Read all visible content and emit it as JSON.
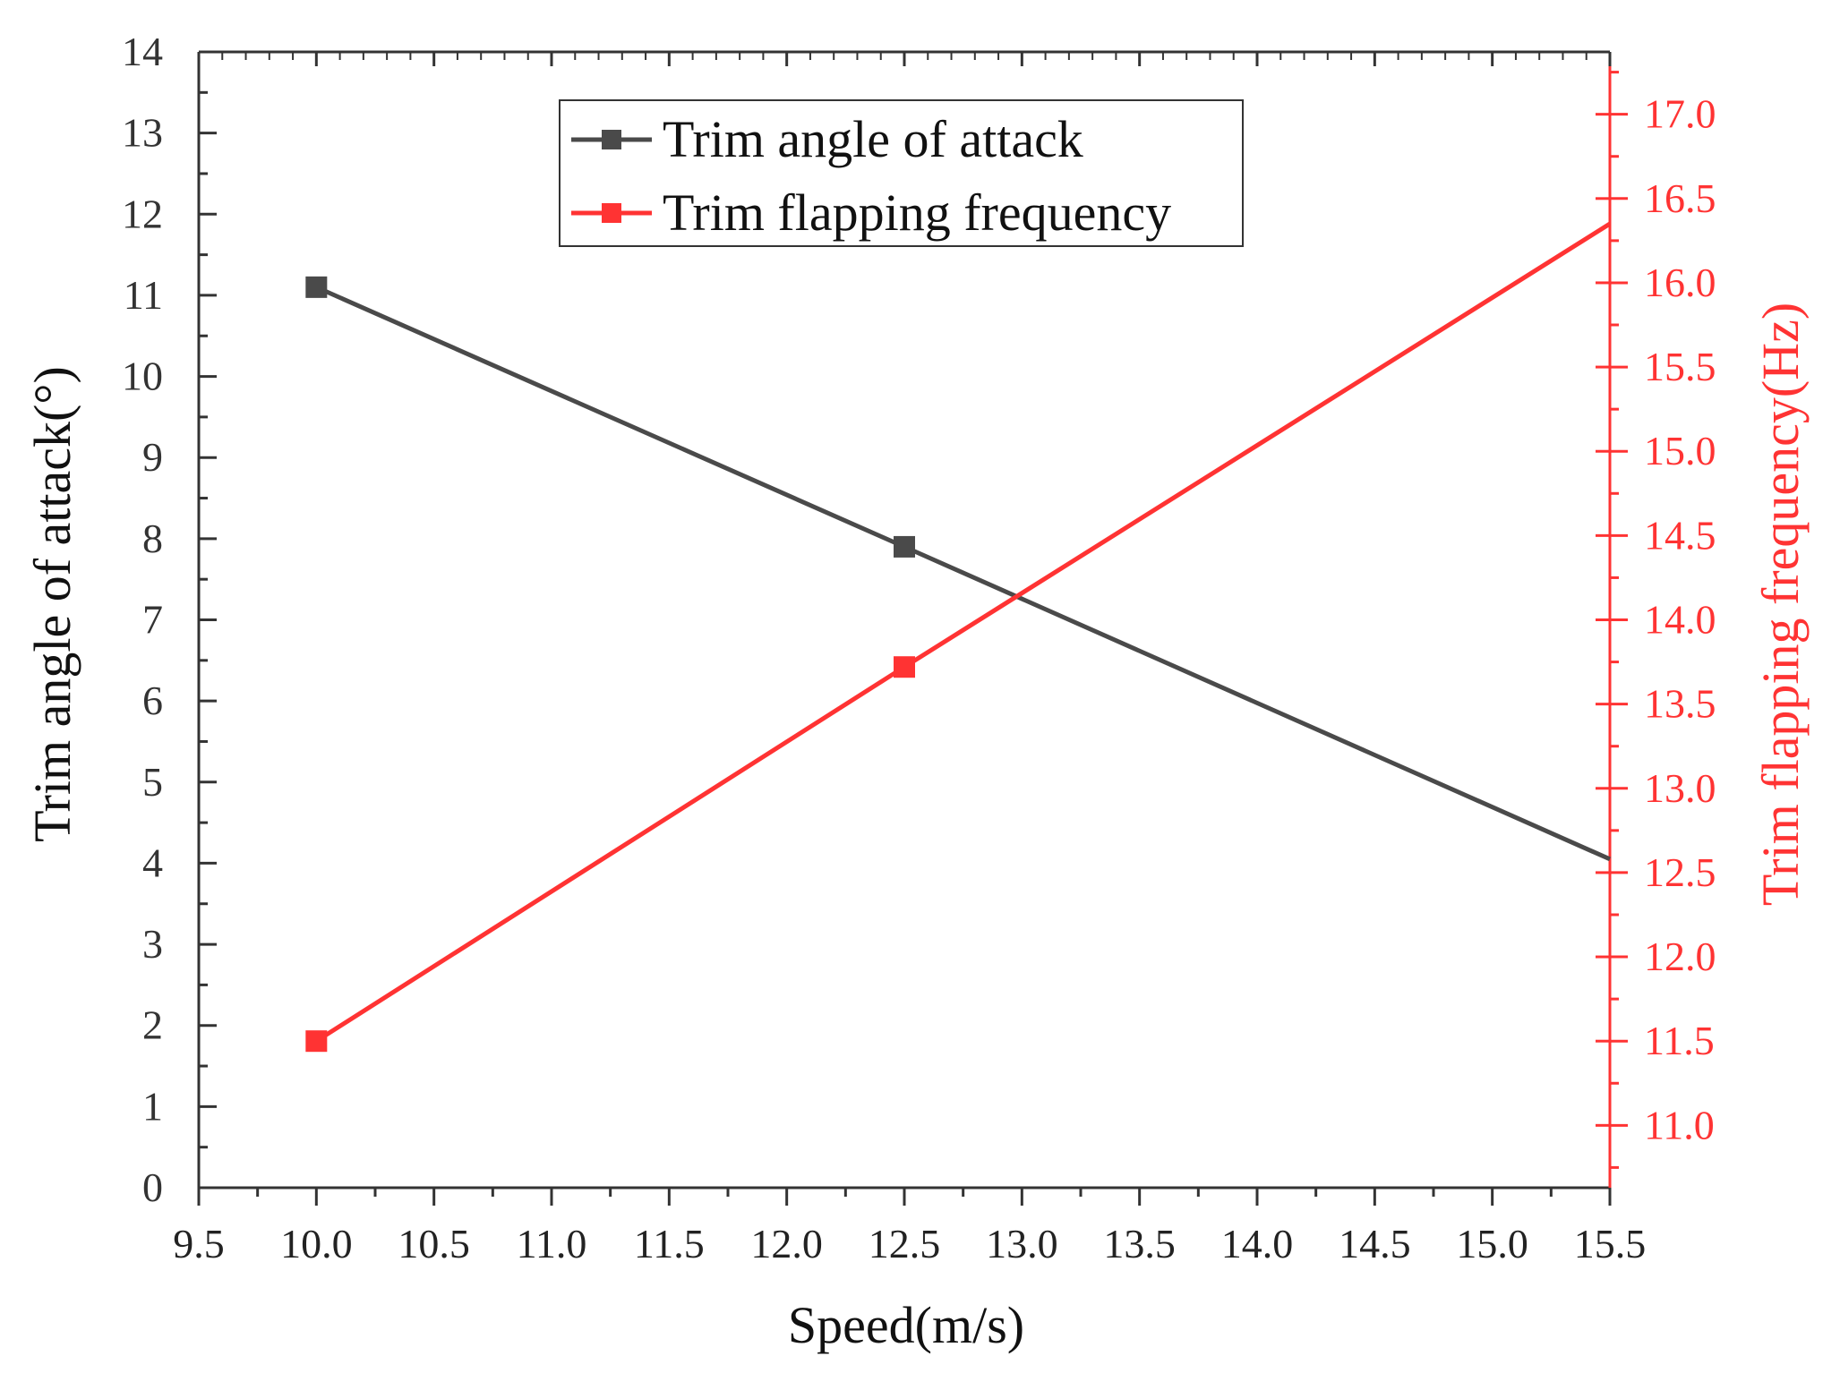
{
  "chart_data": {
    "type": "line",
    "title": "",
    "xlabel": "Speed(m/s)",
    "ylabel_left": "Trim angle of attack(°)",
    "ylabel_right": "Trim flapping frequency(Hz)",
    "xlim": [
      9.5,
      15.5
    ],
    "ylim_left": [
      0,
      14
    ],
    "ylim_right": [
      10.63,
      17.37
    ],
    "x_ticks": [
      "9.5",
      "10.0",
      "10.5",
      "11.0",
      "11.5",
      "12.0",
      "12.5",
      "13.0",
      "13.5",
      "14.0",
      "14.5",
      "15.0",
      "15.5"
    ],
    "y_left_ticks": [
      "0",
      "1",
      "2",
      "3",
      "4",
      "5",
      "6",
      "7",
      "8",
      "9",
      "10",
      "11",
      "12",
      "13",
      "14"
    ],
    "y_right_ticks": [
      "11.0",
      "11.5",
      "12.0",
      "12.5",
      "13.0",
      "13.5",
      "14.0",
      "14.5",
      "15.0",
      "15.5",
      "16.0",
      "16.5",
      "17.0"
    ],
    "grid": false,
    "legend_position": "top-center",
    "series": [
      {
        "name": "Trim angle of attack",
        "axis": "left",
        "color": "#4a4a4a",
        "x": [
          10.0,
          12.5,
          15.5
        ],
        "y": [
          11.1,
          7.9,
          4.05
        ],
        "marker_x": [
          10.0,
          12.5
        ]
      },
      {
        "name": "Trim flapping frequency",
        "axis": "right",
        "color": "#ff3333",
        "x": [
          10.0,
          12.5,
          15.5
        ],
        "y": [
          11.5,
          13.72,
          16.35
        ],
        "marker_x": [
          10.0,
          12.5
        ]
      }
    ]
  }
}
